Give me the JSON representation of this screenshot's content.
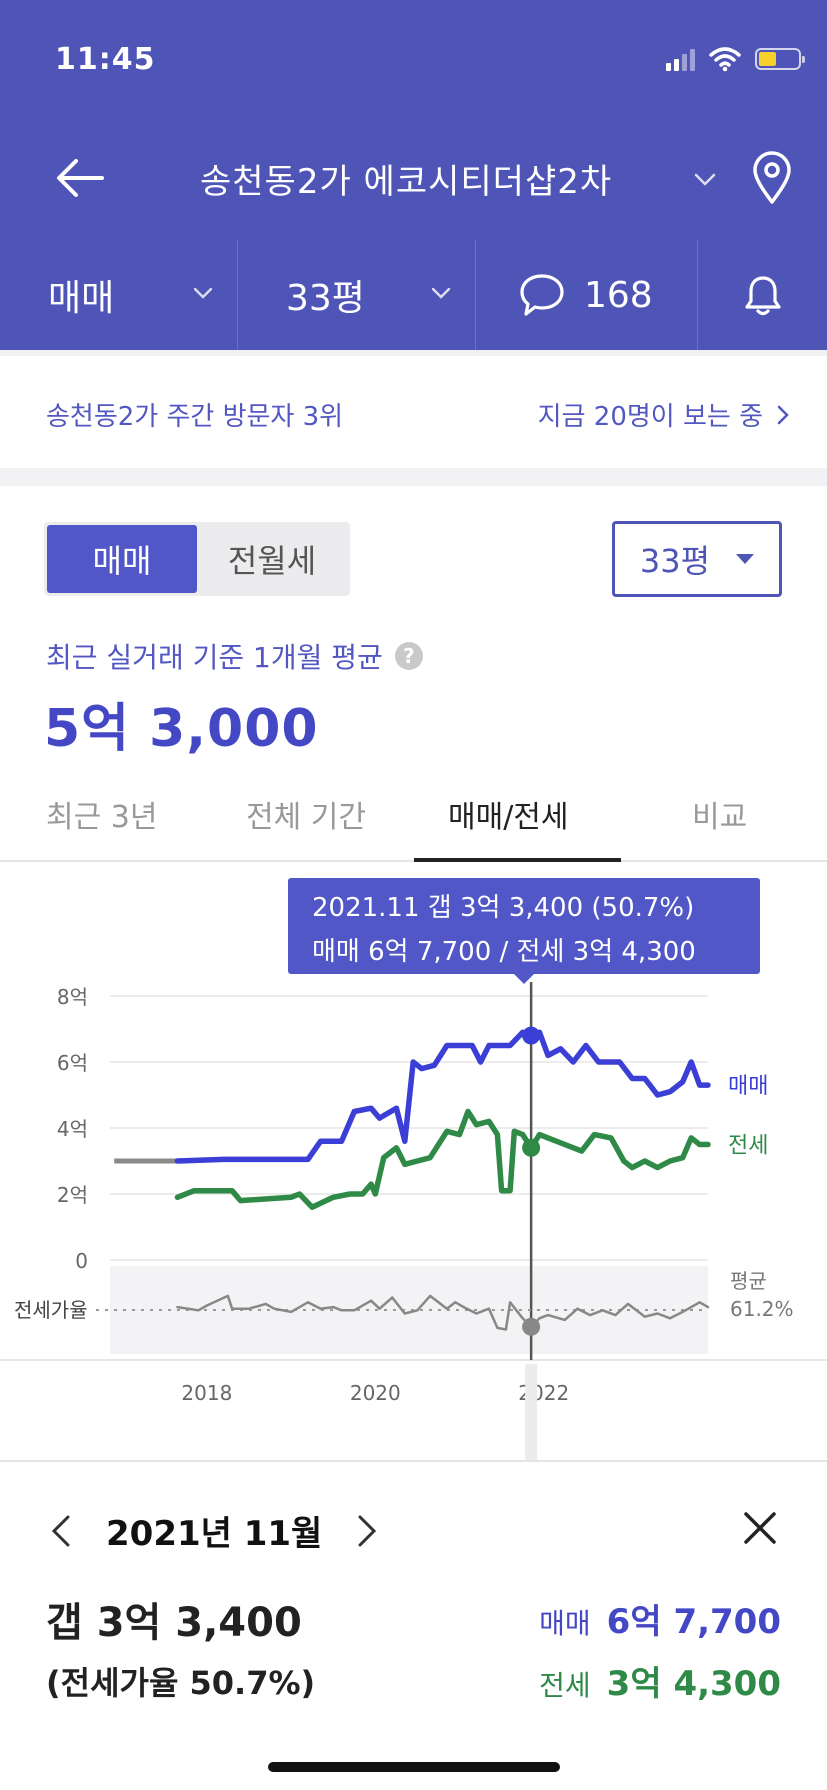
{
  "status": {
    "time": "11:45"
  },
  "header": {
    "title": "송천동2가 에코시티더샵2차"
  },
  "filters": {
    "deal_type": "매매",
    "area": "33평",
    "comments": "168"
  },
  "banner": {
    "rank_text": "송천동2가 주간 방문자 3위",
    "viewers_text": "지금 20명이 보는 중"
  },
  "selector": {
    "tabs": [
      "매매",
      "전월세"
    ],
    "active_tab": 0,
    "area": "33평"
  },
  "summary": {
    "caption": "최근 실거래 기준 1개월 평균",
    "help": "?",
    "price": "5억 3,000"
  },
  "chart_tabs": [
    "최근 3년",
    "전체 기간",
    "매매/전세",
    "비교"
  ],
  "chart_tab_active": 2,
  "tooltip": {
    "line1": "2021.11  갭 3억 3,400 (50.7%)",
    "line2": "매매 6억 7,700 / 전세 3억 4,300"
  },
  "colors": {
    "brand": "#4f54b7",
    "sale": "#3b3fd6",
    "jeonse": "#2e8a46",
    "ratio": "#888888"
  },
  "chart_data": {
    "type": "line",
    "y_ticks": [
      "8억",
      "6억",
      "4억",
      "2억",
      "0"
    ],
    "y_tick_values": [
      8,
      6,
      4,
      2,
      0
    ],
    "ylim": [
      0,
      8
    ],
    "x_ticks": [
      "2018",
      "2020",
      "2022"
    ],
    "x_tick_values": [
      2018,
      2020,
      2022
    ],
    "xlim": [
      2016.85,
      2023.95
    ],
    "ratio_label": "전세가율",
    "avg_label": "평균",
    "avg_value": "61.2%",
    "avg_ratio": 61.2,
    "selected_x": 2021.85,
    "series": [
      {
        "name": "매매",
        "points": [
          [
            2017.65,
            3.0
          ],
          [
            2018.2,
            3.05
          ],
          [
            2018.8,
            3.05
          ],
          [
            2019.2,
            3.05
          ],
          [
            2019.35,
            3.6
          ],
          [
            2019.6,
            3.6
          ],
          [
            2019.75,
            4.5
          ],
          [
            2019.95,
            4.6
          ],
          [
            2020.05,
            4.3
          ],
          [
            2020.25,
            4.6
          ],
          [
            2020.35,
            3.6
          ],
          [
            2020.45,
            6.0
          ],
          [
            2020.55,
            5.8
          ],
          [
            2020.7,
            5.9
          ],
          [
            2020.85,
            6.5
          ],
          [
            2021.15,
            6.5
          ],
          [
            2021.25,
            6.0
          ],
          [
            2021.35,
            6.5
          ],
          [
            2021.6,
            6.5
          ],
          [
            2021.75,
            6.9
          ],
          [
            2021.85,
            6.8
          ],
          [
            2021.95,
            6.9
          ],
          [
            2022.05,
            6.2
          ],
          [
            2022.2,
            6.4
          ],
          [
            2022.35,
            6.0
          ],
          [
            2022.5,
            6.5
          ],
          [
            2022.65,
            6.0
          ],
          [
            2022.9,
            6.0
          ],
          [
            2023.05,
            5.5
          ],
          [
            2023.2,
            5.5
          ],
          [
            2023.35,
            5.0
          ],
          [
            2023.5,
            5.1
          ],
          [
            2023.65,
            5.4
          ],
          [
            2023.75,
            6.0
          ],
          [
            2023.85,
            5.3
          ],
          [
            2024.0,
            5.3
          ]
        ]
      },
      {
        "name": "전세",
        "points": [
          [
            2017.65,
            1.9
          ],
          [
            2017.85,
            2.1
          ],
          [
            2018.3,
            2.1
          ],
          [
            2018.4,
            1.8
          ],
          [
            2019.0,
            1.9
          ],
          [
            2019.1,
            2.0
          ],
          [
            2019.25,
            1.6
          ],
          [
            2019.5,
            1.9
          ],
          [
            2019.7,
            2.0
          ],
          [
            2019.85,
            2.0
          ],
          [
            2019.95,
            2.3
          ],
          [
            2020.0,
            2.0
          ],
          [
            2020.1,
            3.1
          ],
          [
            2020.25,
            3.4
          ],
          [
            2020.35,
            2.9
          ],
          [
            2020.5,
            3.0
          ],
          [
            2020.65,
            3.1
          ],
          [
            2020.85,
            3.9
          ],
          [
            2021.0,
            3.8
          ],
          [
            2021.1,
            4.5
          ],
          [
            2021.2,
            4.1
          ],
          [
            2021.35,
            4.2
          ],
          [
            2021.45,
            3.8
          ],
          [
            2021.5,
            2.1
          ],
          [
            2021.6,
            2.1
          ],
          [
            2021.65,
            3.9
          ],
          [
            2021.75,
            3.8
          ],
          [
            2021.85,
            3.4
          ],
          [
            2021.95,
            3.8
          ],
          [
            2022.05,
            3.7
          ],
          [
            2022.25,
            3.5
          ],
          [
            2022.45,
            3.3
          ],
          [
            2022.6,
            3.8
          ],
          [
            2022.8,
            3.7
          ],
          [
            2022.95,
            3.0
          ],
          [
            2023.05,
            2.8
          ],
          [
            2023.2,
            3.0
          ],
          [
            2023.35,
            2.8
          ],
          [
            2023.5,
            3.0
          ],
          [
            2023.65,
            3.1
          ],
          [
            2023.75,
            3.7
          ],
          [
            2023.85,
            3.5
          ],
          [
            2024.0,
            3.5
          ]
        ]
      },
      {
        "name": "전세가율",
        "points": [
          [
            2017.65,
            63
          ],
          [
            2017.9,
            61
          ],
          [
            2018.0,
            64
          ],
          [
            2018.25,
            70
          ],
          [
            2018.3,
            62
          ],
          [
            2018.5,
            62
          ],
          [
            2018.7,
            65
          ],
          [
            2018.8,
            62
          ],
          [
            2019.0,
            60
          ],
          [
            2019.2,
            66
          ],
          [
            2019.35,
            62
          ],
          [
            2019.5,
            63
          ],
          [
            2019.6,
            61
          ],
          [
            2019.75,
            61
          ],
          [
            2019.95,
            67
          ],
          [
            2020.05,
            62
          ],
          [
            2020.2,
            69
          ],
          [
            2020.35,
            59
          ],
          [
            2020.5,
            61
          ],
          [
            2020.65,
            70
          ],
          [
            2020.85,
            62
          ],
          [
            2020.95,
            66
          ],
          [
            2021.05,
            63
          ],
          [
            2021.2,
            59
          ],
          [
            2021.35,
            62
          ],
          [
            2021.45,
            50
          ],
          [
            2021.55,
            49
          ],
          [
            2021.6,
            66
          ],
          [
            2021.75,
            56
          ],
          [
            2021.85,
            50.7
          ],
          [
            2021.95,
            56
          ],
          [
            2022.05,
            58
          ],
          [
            2022.25,
            55
          ],
          [
            2022.4,
            62
          ],
          [
            2022.55,
            58
          ],
          [
            2022.7,
            61
          ],
          [
            2022.85,
            58
          ],
          [
            2023.0,
            65
          ],
          [
            2023.2,
            57
          ],
          [
            2023.35,
            59
          ],
          [
            2023.5,
            56
          ],
          [
            2023.65,
            60
          ],
          [
            2023.85,
            66
          ],
          [
            2024.0,
            63
          ]
        ]
      }
    ],
    "pre_history": {
      "name": "매매",
      "points": [
        [
          2016.9,
          3.0
        ],
        [
          2017.65,
          3.0
        ]
      ]
    }
  },
  "detail": {
    "month": "2021년 11월",
    "gap": "갭 3억 3,400",
    "ratio": "(전세가율 50.7%)",
    "sale_label": "매매",
    "sale_value": "6억 7,700",
    "jeonse_label": "전세",
    "jeonse_value": "3억 4,300"
  }
}
